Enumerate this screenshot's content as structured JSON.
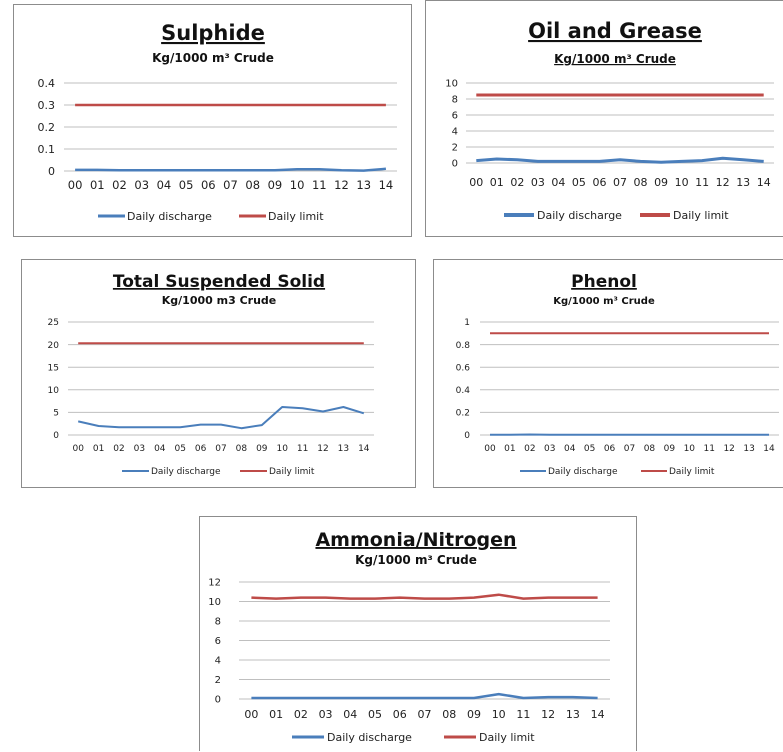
{
  "colors": {
    "discharge": "#4a7ebb",
    "limit": "#be4b48",
    "grid": "#bfbfbf"
  },
  "chart_data": [
    {
      "type": "line",
      "title": "Sulphide",
      "subtitle": "Kg/1000 m³ Crude",
      "categories": [
        "00",
        "01",
        "02",
        "03",
        "04",
        "05",
        "06",
        "07",
        "08",
        "09",
        "10",
        "11",
        "12",
        "13",
        "14"
      ],
      "yticks": [
        "0",
        "0.1",
        "0.2",
        "0.3",
        "0.4"
      ],
      "ylim": [
        0,
        0.4
      ],
      "grid": true,
      "legend": "bottom",
      "series": [
        {
          "name": "Daily discharge",
          "values": [
            0.005,
            0.005,
            0.003,
            0.003,
            0.003,
            0.003,
            0.003,
            0.003,
            0.003,
            0.003,
            0.008,
            0.008,
            0.003,
            0.002,
            0.01
          ]
        },
        {
          "name": "Daily limit",
          "values": [
            0.3,
            0.3,
            0.3,
            0.3,
            0.3,
            0.3,
            0.3,
            0.3,
            0.3,
            0.3,
            0.3,
            0.3,
            0.3,
            0.3,
            0.3
          ]
        }
      ]
    },
    {
      "type": "line",
      "title": "Oil and Grease",
      "subtitle": "Kg/1000 m³ Crude",
      "categories": [
        "00",
        "01",
        "02",
        "03",
        "04",
        "05",
        "06",
        "07",
        "08",
        "09",
        "10",
        "11",
        "12",
        "13",
        "14"
      ],
      "yticks": [
        "0",
        "2",
        "4",
        "6",
        "8",
        "10"
      ],
      "ylim": [
        0,
        10
      ],
      "grid": true,
      "legend": "bottom",
      "series": [
        {
          "name": "Daily discharge",
          "values": [
            0.3,
            0.5,
            0.4,
            0.2,
            0.2,
            0.2,
            0.2,
            0.4,
            0.2,
            0.1,
            0.2,
            0.3,
            0.6,
            0.4,
            0.2
          ]
        },
        {
          "name": "Daily limit",
          "values": [
            8.5,
            8.5,
            8.5,
            8.5,
            8.5,
            8.5,
            8.5,
            8.5,
            8.5,
            8.5,
            8.5,
            8.5,
            8.5,
            8.5,
            8.5
          ]
        }
      ]
    },
    {
      "type": "line",
      "title": "Total Suspended Solid",
      "subtitle": "Kg/1000 m3 Crude",
      "categories": [
        "00",
        "01",
        "02",
        "03",
        "04",
        "05",
        "06",
        "07",
        "08",
        "09",
        "10",
        "11",
        "12",
        "13",
        "14"
      ],
      "yticks": [
        "0",
        "5",
        "10",
        "15",
        "20",
        "25"
      ],
      "ylim": [
        0,
        25
      ],
      "grid": true,
      "legend": "bottom",
      "series": [
        {
          "name": "Daily discharge",
          "values": [
            3,
            2,
            1.7,
            1.7,
            1.7,
            1.7,
            2.3,
            2.3,
            1.5,
            2.2,
            6.2,
            5.9,
            5.2,
            6.2,
            4.8
          ]
        },
        {
          "name": "Daily limit",
          "values": [
            20.3,
            20.3,
            20.3,
            20.3,
            20.3,
            20.3,
            20.3,
            20.3,
            20.3,
            20.3,
            20.3,
            20.3,
            20.3,
            20.3,
            20.3
          ]
        }
      ]
    },
    {
      "type": "line",
      "title": "Phenol",
      "subtitle": "Kg/1000 m³ Crude",
      "categories": [
        "00",
        "01",
        "02",
        "03",
        "04",
        "05",
        "06",
        "07",
        "08",
        "09",
        "10",
        "11",
        "12",
        "13",
        "14"
      ],
      "yticks": [
        "0",
        "0.2",
        "0.4",
        "0.6",
        "0.8",
        "1"
      ],
      "ylim": [
        0,
        1
      ],
      "grid": true,
      "legend": "bottom",
      "series": [
        {
          "name": "Daily discharge",
          "values": [
            0.002,
            0.002,
            0.004,
            0.002,
            0.002,
            0.002,
            0.002,
            0.002,
            0.002,
            0.002,
            0.002,
            0.002,
            0.002,
            0.002,
            0.002
          ]
        },
        {
          "name": "Daily limit",
          "values": [
            0.9,
            0.9,
            0.9,
            0.9,
            0.9,
            0.9,
            0.9,
            0.9,
            0.9,
            0.9,
            0.9,
            0.9,
            0.9,
            0.9,
            0.9
          ]
        }
      ]
    },
    {
      "type": "line",
      "title": "Ammonia/Nitrogen",
      "subtitle": "Kg/1000 m³ Crude",
      "categories": [
        "00",
        "01",
        "02",
        "03",
        "04",
        "05",
        "06",
        "07",
        "08",
        "09",
        "10",
        "11",
        "12",
        "13",
        "14"
      ],
      "yticks": [
        "0",
        "2",
        "4",
        "6",
        "8",
        "10",
        "12"
      ],
      "ylim": [
        0,
        12
      ],
      "grid": true,
      "legend": "bottom",
      "series": [
        {
          "name": "Daily discharge",
          "values": [
            0.1,
            0.1,
            0.1,
            0.1,
            0.1,
            0.1,
            0.1,
            0.1,
            0.1,
            0.1,
            0.5,
            0.1,
            0.2,
            0.2,
            0.1
          ]
        },
        {
          "name": "Daily limit",
          "values": [
            10.4,
            10.3,
            10.4,
            10.4,
            10.3,
            10.3,
            10.4,
            10.3,
            10.3,
            10.4,
            10.7,
            10.3,
            10.4,
            10.4,
            10.4
          ]
        }
      ]
    }
  ]
}
